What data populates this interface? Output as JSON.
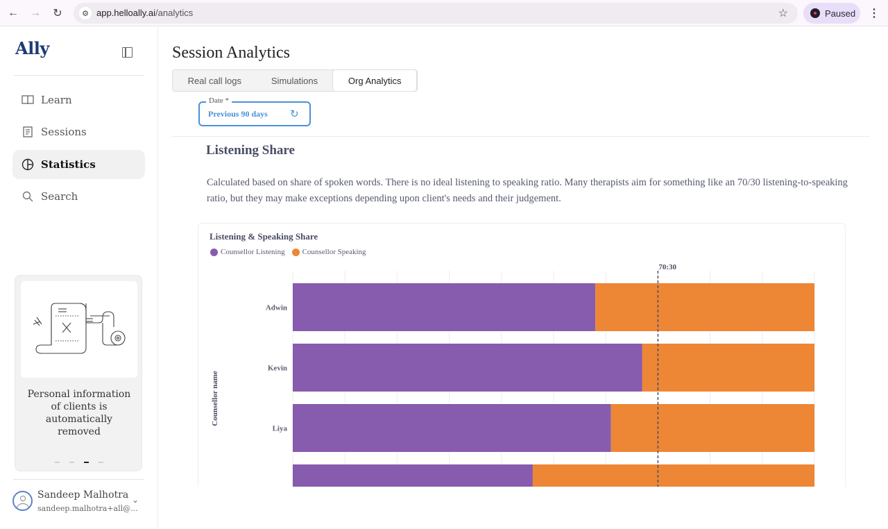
{
  "browser": {
    "url_host": "app.helloally.ai",
    "url_path": "/analytics",
    "profile_status": "Paused"
  },
  "sidebar": {
    "logo": "Ally",
    "items": [
      {
        "label": "Learn",
        "icon": "book-icon",
        "active": false
      },
      {
        "label": "Sessions",
        "icon": "document-icon",
        "active": false
      },
      {
        "label": "Statistics",
        "icon": "pie-chart-icon",
        "active": true
      },
      {
        "label": "Search",
        "icon": "search-icon",
        "active": false
      }
    ],
    "carousel": {
      "text": "Personal information of clients is automatically removed",
      "slide_count": 4,
      "active_slide": 3
    },
    "user": {
      "name": "Sandeep Malhotra",
      "email": "sandeep.malhotra+all@..."
    }
  },
  "main": {
    "title": "Session Analytics",
    "tabs": [
      {
        "label": "Real call logs",
        "active": false
      },
      {
        "label": "Simulations",
        "active": false
      },
      {
        "label": "Org Analytics",
        "active": true
      }
    ],
    "date_filter": {
      "label": "Date *",
      "value": "Previous 90 days"
    },
    "section": {
      "title": "Listening Share",
      "description": "Calculated based on share of spoken words. There is no ideal listening to speaking ratio. Many therapists aim for something like an 70/30 listening-to-speaking ratio, but they may make exceptions depending upon client's needs and their judgement."
    }
  },
  "colors": {
    "listening": "#875bad",
    "speaking": "#ed8635",
    "accent": "#4a90d9"
  },
  "chart_data": {
    "type": "bar",
    "orientation": "horizontal",
    "stacked": true,
    "title": "Listening & Speaking Share",
    "ylabel": "Counsellor name",
    "xlabel": "",
    "xlim": [
      0,
      100
    ],
    "grid": true,
    "legend_position": "top-left",
    "categories": [
      "Adwin",
      "Kevin",
      "Liya",
      ""
    ],
    "series": [
      {
        "name": "Counsellor Listening",
        "color": "#875bad",
        "values": [
          58,
          67,
          61,
          46
        ]
      },
      {
        "name": "Counsellor Speaking",
        "color": "#ed8635",
        "values": [
          42,
          33,
          39,
          54
        ]
      }
    ],
    "annotations": [
      {
        "type": "vline",
        "x": 70,
        "label": "70:30",
        "style": "dashed"
      }
    ]
  }
}
